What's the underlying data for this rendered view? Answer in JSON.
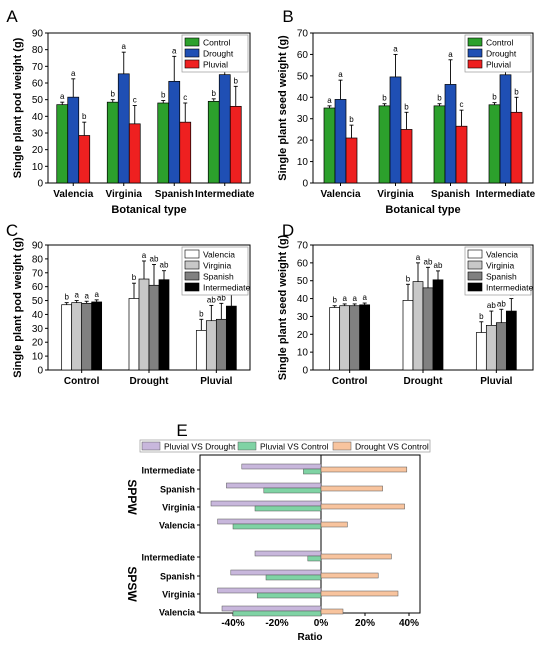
{
  "colors": {
    "control": "#2ca02c",
    "drought": "#1f4fb4",
    "pluvial": "#ee2020",
    "valencia": "#ffffff",
    "virginia": "#c8c8c8",
    "spanish": "#808080",
    "intermediate": "#000000",
    "pluvial_vs_drought": "#c8b7dc",
    "pluvial_vs_control": "#7fd3a4",
    "drought_vs_control": "#f8c49e"
  },
  "chart_data": [
    {
      "panel": "A",
      "type": "bar",
      "ylabel": "Single plant pod weight (g)",
      "xlabel": "Botanical type",
      "ylim": [
        0,
        90
      ],
      "yticks": [
        0,
        10,
        20,
        30,
        40,
        50,
        60,
        70,
        80,
        90
      ],
      "categories": [
        "Valencia",
        "Virginia",
        "Spanish",
        "Intermediate"
      ],
      "legend": "top-right",
      "series": [
        {
          "name": "Control",
          "color": "#2ca02c",
          "values": [
            47,
            48.5,
            48,
            49
          ],
          "errors": [
            1.5,
            1.5,
            1.5,
            1.5
          ],
          "letters": [
            "a",
            "b",
            "b",
            "b"
          ]
        },
        {
          "name": "Drought",
          "color": "#1f4fb4",
          "values": [
            51.5,
            65.5,
            61,
            65
          ],
          "errors": [
            11,
            13,
            15,
            6.5
          ],
          "letters": [
            "a",
            "a",
            "a",
            "a"
          ]
        },
        {
          "name": "Pluvial",
          "color": "#ee2020",
          "values": [
            28.5,
            35.5,
            36.5,
            46
          ],
          "errors": [
            8,
            11,
            11.5,
            12
          ],
          "letters": [
            "b",
            "c",
            "c",
            "b"
          ]
        }
      ]
    },
    {
      "panel": "B",
      "type": "bar",
      "ylabel": "Single plant seed weight (g)",
      "xlabel": "Botanical type",
      "ylim": [
        0,
        70
      ],
      "yticks": [
        0,
        10,
        20,
        30,
        40,
        50,
        60,
        70
      ],
      "categories": [
        "Valencia",
        "Virginia",
        "Spanish",
        "Intermediate"
      ],
      "legend": "top-right",
      "series": [
        {
          "name": "Control",
          "color": "#2ca02c",
          "values": [
            35,
            36,
            36,
            36.5
          ],
          "errors": [
            1,
            1,
            1,
            1
          ],
          "letters": [
            "a",
            "b",
            "b",
            "b"
          ]
        },
        {
          "name": "Drought",
          "color": "#1f4fb4",
          "values": [
            39,
            49.5,
            46,
            50.5
          ],
          "errors": [
            9,
            10.5,
            11.5,
            5
          ],
          "letters": [
            "a",
            "a",
            "a",
            "a"
          ]
        },
        {
          "name": "Pluvial",
          "color": "#ee2020",
          "values": [
            21,
            25,
            26.5,
            33
          ],
          "errors": [
            6,
            8,
            7.5,
            7
          ],
          "letters": [
            "b",
            "b",
            "c",
            "b"
          ]
        }
      ]
    },
    {
      "panel": "C",
      "type": "bar",
      "ylabel": "Single plant pod weight (g)",
      "ylim": [
        0,
        90
      ],
      "yticks": [
        0,
        10,
        20,
        30,
        40,
        50,
        60,
        70,
        80,
        90
      ],
      "categories": [
        "Control",
        "Drought",
        "Pluvial"
      ],
      "legend": "top-right",
      "series": [
        {
          "name": "Valencia",
          "color": "#ffffff",
          "values": [
            47,
            51.5,
            28.5
          ],
          "errors": [
            1.5,
            11,
            8
          ],
          "letters": [
            "b",
            "b",
            "b"
          ]
        },
        {
          "name": "Virginia",
          "color": "#c8c8c8",
          "values": [
            48.5,
            65.5,
            35.5
          ],
          "errors": [
            1.5,
            13,
            11
          ],
          "letters": [
            "a",
            "a",
            "ab"
          ]
        },
        {
          "name": "Spanish",
          "color": "#808080",
          "values": [
            48,
            61,
            36.5
          ],
          "errors": [
            1.5,
            15,
            11.5
          ],
          "letters": [
            "a",
            "ab",
            "ab"
          ]
        },
        {
          "name": "Intermediate",
          "color": "#000000",
          "values": [
            49,
            65,
            46
          ],
          "errors": [
            1.5,
            6.5,
            12
          ],
          "letters": [
            "a",
            "ab",
            "a"
          ]
        }
      ]
    },
    {
      "panel": "D",
      "type": "bar",
      "ylabel": "Single plant seed weight (g)",
      "ylim": [
        0,
        70
      ],
      "yticks": [
        0,
        10,
        20,
        30,
        40,
        50,
        60,
        70
      ],
      "categories": [
        "Control",
        "Drought",
        "Pluvial"
      ],
      "legend": "top-right",
      "series": [
        {
          "name": "Valencia",
          "color": "#ffffff",
          "values": [
            35,
            39,
            21
          ],
          "errors": [
            1,
            9,
            6
          ],
          "letters": [
            "b",
            "b",
            "b"
          ]
        },
        {
          "name": "Virginia",
          "color": "#c8c8c8",
          "values": [
            36,
            49.5,
            25
          ],
          "errors": [
            1,
            10.5,
            8
          ],
          "letters": [
            "a",
            "a",
            "ab"
          ]
        },
        {
          "name": "Spanish",
          "color": "#808080",
          "values": [
            36,
            46,
            26.5
          ],
          "errors": [
            1,
            11.5,
            7.5
          ],
          "letters": [
            "a",
            "ab",
            "ab"
          ]
        },
        {
          "name": "Intermediate",
          "color": "#000000",
          "values": [
            36.5,
            50.5,
            33
          ],
          "errors": [
            1,
            5,
            7
          ],
          "letters": [
            "a",
            "ab",
            "a"
          ]
        }
      ]
    },
    {
      "panel": "E",
      "type": "bar",
      "orientation": "horizontal",
      "xlabel": "Ratio",
      "xlim": [
        -0.55,
        0.45
      ],
      "xticks": [
        -0.4,
        -0.2,
        0,
        0.2,
        0.4
      ],
      "xtick_labels": [
        "-40%",
        "-20%",
        "0%",
        "20%",
        "40%"
      ],
      "legend": "top",
      "groups": [
        {
          "name": "SPPW",
          "categories": [
            "Intermediate",
            "Spanish",
            "Virginia",
            "Valencia"
          ]
        },
        {
          "name": "SPSW",
          "categories": [
            "Intermediate",
            "Spanish",
            "Virginia",
            "Valencia"
          ]
        }
      ],
      "series": [
        {
          "name": "Pluvial VS Drought",
          "color": "#c8b7dc",
          "values": {
            "SPPW": [
              -0.36,
              -0.43,
              -0.5,
              -0.47
            ],
            "SPSW": [
              -0.3,
              -0.41,
              -0.47,
              -0.45
            ]
          }
        },
        {
          "name": "Pluvial VS Control",
          "color": "#7fd3a4",
          "values": {
            "SPPW": [
              -0.08,
              -0.26,
              -0.3,
              -0.4
            ],
            "SPSW": [
              -0.06,
              -0.25,
              -0.29,
              -0.4
            ]
          }
        },
        {
          "name": "Drought VS Control",
          "color": "#f8c49e",
          "values": {
            "SPPW": [
              0.39,
              0.28,
              0.38,
              0.12
            ],
            "SPSW": [
              0.32,
              0.26,
              0.35,
              0.1
            ]
          }
        }
      ]
    }
  ]
}
